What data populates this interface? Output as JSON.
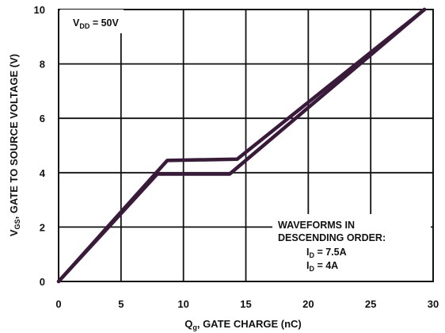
{
  "chart_data": {
    "type": "line",
    "xlabel": {
      "main": "Q",
      "sub": "g",
      "rest": ", GATE CHARGE (nC)"
    },
    "ylabel": {
      "main": "V",
      "sub": "GS",
      "rest": ", GATE TO SOURCE VOLTAGE (V)"
    },
    "xlim": [
      0,
      30
    ],
    "ylim": [
      0,
      10
    ],
    "x_ticks": [
      0,
      5,
      10,
      15,
      20,
      25,
      30
    ],
    "y_ticks": [
      0,
      2,
      4,
      6,
      8,
      10
    ],
    "grid": true,
    "condition": {
      "main": "V",
      "sub": "DD",
      "rest": " = 50V"
    },
    "annotation": {
      "line1": "WAVEFORMS IN",
      "line2": "DESCENDING ORDER:",
      "items": [
        {
          "main": "I",
          "sub": "D",
          "rest": " = 7.5A"
        },
        {
          "main": "I",
          "sub": "D",
          "rest": " = 4A"
        }
      ]
    },
    "series": [
      {
        "x": [
          0,
          8.7,
          14.3,
          29.3
        ],
        "y": [
          0,
          4.45,
          4.5,
          10
        ]
      },
      {
        "x": [
          0,
          7.9,
          13.7,
          29.3
        ],
        "y": [
          0,
          3.95,
          3.95,
          10
        ]
      }
    ],
    "line_color": "#3a1a3a"
  }
}
